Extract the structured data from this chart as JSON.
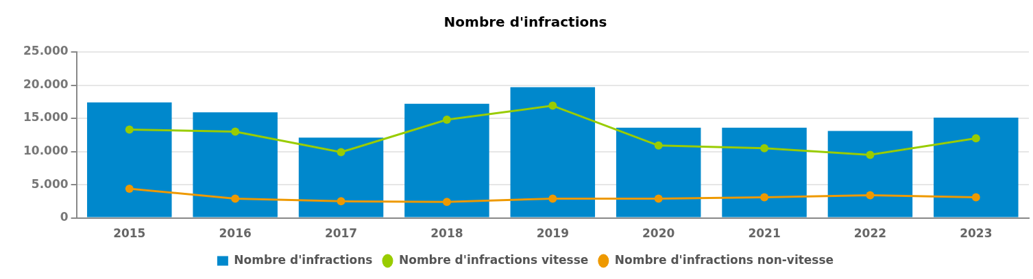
{
  "chart_data": {
    "type": "bar",
    "title": "Nombre d'infractions",
    "categories": [
      "2015",
      "2016",
      "2017",
      "2018",
      "2019",
      "2020",
      "2021",
      "2022",
      "2023"
    ],
    "series": [
      {
        "name": "Nombre d'infractions",
        "color": "#0088cc",
        "values": [
          17400,
          15900,
          12100,
          17200,
          19700,
          13600,
          13600,
          13100,
          15100
        ]
      },
      {
        "name": "Nombre d'infractions vitesse",
        "type": "line",
        "color": "#99cc00",
        "values": [
          13300,
          13000,
          9900,
          14800,
          16900,
          10900,
          10500,
          9500,
          12000
        ]
      },
      {
        "name": "Nombre d'infractions non-vitesse",
        "type": "line",
        "color": "#ee9900",
        "values": [
          4400,
          2900,
          2500,
          2400,
          2900,
          2900,
          3100,
          3400,
          3100
        ]
      }
    ],
    "ylim": [
      0,
      25000
    ],
    "yticks": [
      {
        "value": 0,
        "label": "0"
      },
      {
        "value": 5000,
        "label": "5.000"
      },
      {
        "value": 10000,
        "label": "10.000"
      },
      {
        "value": 15000,
        "label": "15.000"
      },
      {
        "value": 20000,
        "label": "20.000"
      },
      {
        "value": 25000,
        "label": "25.000"
      }
    ],
    "grid": "y",
    "legend": "bottom",
    "marker": "circle",
    "line_style": "solid"
  }
}
